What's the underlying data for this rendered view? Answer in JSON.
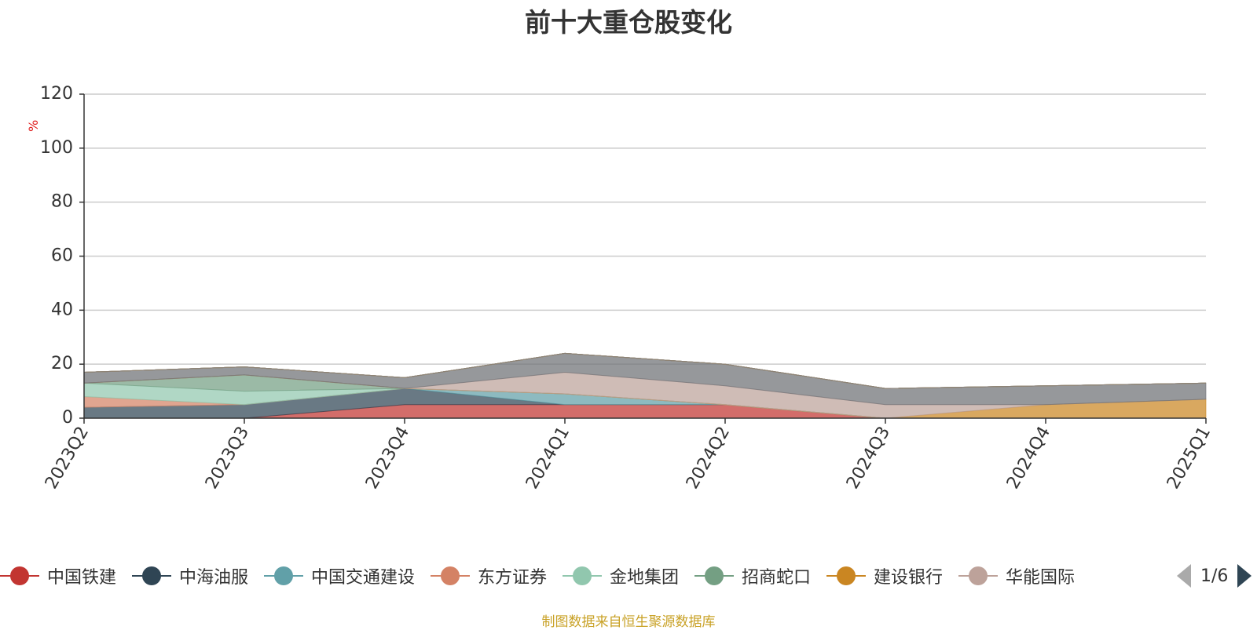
{
  "title": "前十大重仓股变化",
  "source_note": "制图数据来自恒生聚源数据库",
  "legend_pager": {
    "page_text": "1/6"
  },
  "chart_data": {
    "type": "area",
    "stacked": true,
    "title": "前十大重仓股变化",
    "y_unit": "%",
    "ylim": [
      0,
      120
    ],
    "yticks": [
      0,
      20,
      40,
      60,
      80,
      100,
      120
    ],
    "grid": true,
    "legend_position": "bottom",
    "categories": [
      "2023Q2",
      "2023Q3",
      "2023Q4",
      "2024Q1",
      "2024Q2",
      "2024Q3",
      "2024Q4",
      "2025Q1"
    ],
    "series": [
      {
        "name": "中国铁建",
        "color": "#c23531",
        "values": [
          0,
          0,
          5,
          5,
          5,
          0,
          0,
          0
        ]
      },
      {
        "name": "中海油服",
        "color": "#2f4554",
        "values": [
          4,
          5,
          6,
          0,
          0,
          0,
          0,
          0
        ]
      },
      {
        "name": "中国交通建设",
        "color": "#61a0a8",
        "values": [
          0,
          0,
          0,
          4,
          0,
          0,
          0,
          0
        ]
      },
      {
        "name": "东方证券",
        "color": "#d48265",
        "values": [
          4,
          0,
          0,
          0,
          0,
          0,
          0,
          0
        ]
      },
      {
        "name": "金地集团",
        "color": "#91c7ae",
        "values": [
          5,
          5,
          0,
          0,
          0,
          0,
          0,
          0
        ]
      },
      {
        "name": "招商蛇口",
        "color": "#749f83",
        "values": [
          0,
          6,
          0,
          0,
          0,
          0,
          0,
          0
        ]
      },
      {
        "name": "建设银行",
        "color": "#ca8622",
        "values": [
          0,
          0,
          0,
          0,
          0,
          0,
          5,
          7
        ]
      },
      {
        "name": "华能国际",
        "color": "#bda29a",
        "values": [
          0,
          0,
          0,
          8,
          7,
          5,
          0,
          0
        ]
      },
      {
        "name": "",
        "color": "#6e7074",
        "values": [
          4,
          3,
          4,
          7,
          8,
          6,
          7,
          6
        ]
      },
      {
        "name": "",
        "color": "#546570",
        "values": [
          0,
          0,
          0,
          0,
          0,
          0,
          0,
          0
        ]
      },
      {
        "name": "",
        "color": "#c4ccd3",
        "values": [
          0,
          0,
          0,
          0,
          0,
          0,
          0,
          0
        ]
      },
      {
        "name": "",
        "color": "#c23531",
        "values": [
          0,
          0,
          0,
          0,
          0,
          0,
          0,
          0
        ]
      },
      {
        "name": "",
        "color": "#2f4554",
        "values": [
          0,
          0,
          0,
          0,
          0,
          0,
          0,
          0
        ]
      },
      {
        "name": "",
        "color": "#61a0a8",
        "values": [
          0,
          0,
          0,
          0,
          0,
          0,
          0,
          0
        ]
      },
      {
        "name": "",
        "color": "#d48265",
        "values": [
          0,
          0,
          0,
          0,
          0,
          0,
          0,
          0
        ]
      },
      {
        "name": "",
        "color": "#91c7ae",
        "values": [
          0,
          0,
          0,
          0,
          0,
          0,
          0,
          0
        ]
      },
      {
        "name": "",
        "color": "#749f83",
        "values": [
          0,
          0,
          0,
          0,
          0,
          0,
          0,
          0
        ]
      },
      {
        "name": "",
        "color": "#ca8622",
        "values": [
          0,
          0,
          0,
          0,
          0,
          0,
          0,
          0
        ]
      },
      {
        "name": "",
        "color": "#bda29a",
        "values": [
          0,
          0,
          0,
          0,
          0,
          0,
          0,
          0
        ]
      },
      {
        "name": "",
        "color": "#6e7074",
        "values": [
          0,
          0,
          0,
          0,
          0,
          0,
          0,
          0
        ]
      }
    ]
  }
}
